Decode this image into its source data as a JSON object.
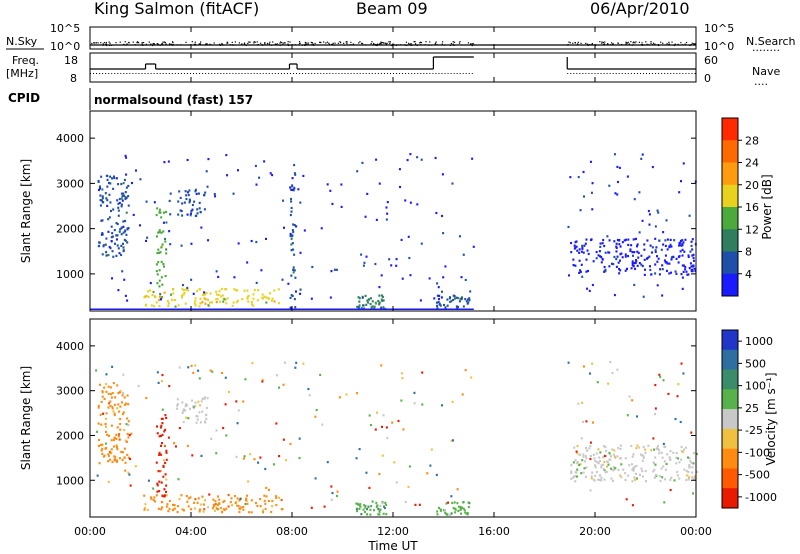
{
  "header": {
    "title": "King Salmon (fitACF)",
    "beam": "Beam 09",
    "date": "06/Apr/2010"
  },
  "strip": {
    "nsky_label": "N.Sky",
    "nsearch_label": "N.Search",
    "nsearch_dots": "........",
    "log_ticks": [
      "10^5",
      "10^0"
    ],
    "freq_label_1": "Freq.",
    "freq_label_2": "[MHz]",
    "freq_ticks": [
      "18",
      "8"
    ],
    "nave_label": "Nave",
    "nave_dots": "....",
    "nave_ticks": [
      "60",
      "0"
    ],
    "cpid_label": "CPID",
    "cpid_text": "normalsound (fast) 157"
  },
  "x_axis": {
    "label": "Time UT",
    "ticks": [
      "00:00",
      "04:00",
      "08:00",
      "12:00",
      "16:00",
      "20:00",
      "00:00"
    ]
  },
  "power_colorbar": {
    "label": "Power [dB]",
    "ticks": [
      "4",
      "8",
      "12",
      "16",
      "20",
      "24",
      "28"
    ],
    "colors": [
      "#1a1aff",
      "#1f4fa8",
      "#2f7f5f",
      "#4caa3c",
      "#e8d21e",
      "#ff9b0f",
      "#ff6a00",
      "#ff2a00"
    ]
  },
  "velocity_colorbar": {
    "label": "Velocity [m s⁻¹]",
    "ticks": [
      "1000",
      "500",
      "100",
      "25",
      "-25",
      "-100",
      "-500",
      "-1000"
    ],
    "colors": [
      "#1f36c8",
      "#2c6fa0",
      "#3a8c6a",
      "#58b24a",
      "#c8c8c8",
      "#f0c040",
      "#ff8c10",
      "#ff5a00",
      "#e81a00"
    ]
  },
  "chart_data": [
    {
      "type": "heatmap",
      "title": "",
      "xlabel": "Time UT",
      "ylabel": "Slant Range [km]",
      "xlim": [
        0,
        24
      ],
      "ylim": [
        180,
        4600
      ],
      "yticks": [
        1000,
        2000,
        3000,
        4000
      ],
      "colorbar_label": "Power [dB]",
      "features": [
        {
          "t0": 2.1,
          "t1": 7.6,
          "r0": 300,
          "r1": 700,
          "value_db": 20
        },
        {
          "t0": 3.4,
          "t1": 4.6,
          "r0": 2300,
          "r1": 2900,
          "value_db": 8
        },
        {
          "t0": 0.3,
          "t1": 1.5,
          "r0": 1400,
          "r1": 3200,
          "value_db": 6
        },
        {
          "t0": 2.6,
          "t1": 3.0,
          "r0": 500,
          "r1": 2500,
          "value_db": 14
        },
        {
          "t0": 7.9,
          "t1": 8.1,
          "r0": 200,
          "r1": 3500,
          "value_db": 6
        },
        {
          "t0": 10.5,
          "t1": 11.7,
          "r0": 250,
          "r1": 550,
          "value_db": 10
        },
        {
          "t0": 13.7,
          "t1": 15.0,
          "r0": 250,
          "r1": 550,
          "value_db": 6
        },
        {
          "t0": 19.0,
          "t1": 24.0,
          "r0": 1000,
          "r1": 1800,
          "value_db": 5
        }
      ]
    },
    {
      "type": "heatmap",
      "title": "",
      "xlabel": "Time UT",
      "ylabel": "Slant Range [km]",
      "xlim": [
        0,
        24
      ],
      "ylim": [
        180,
        4600
      ],
      "yticks": [
        1000,
        2000,
        3000,
        4000
      ],
      "colorbar_label": "Velocity [m s⁻¹]",
      "features": [
        {
          "t0": 2.1,
          "t1": 7.6,
          "r0": 300,
          "r1": 700,
          "value_ms": -300
        },
        {
          "t0": 3.4,
          "t1": 4.6,
          "r0": 2300,
          "r1": 2900,
          "value_ms": 0
        },
        {
          "t0": 0.3,
          "t1": 1.5,
          "r0": 1400,
          "r1": 3200,
          "value_ms": -200
        },
        {
          "t0": 2.6,
          "t1": 3.0,
          "r0": 500,
          "r1": 2500,
          "value_ms": -800
        },
        {
          "t0": 10.5,
          "t1": 11.7,
          "r0": 250,
          "r1": 550,
          "value_ms": 150
        },
        {
          "t0": 13.7,
          "t1": 15.0,
          "r0": 250,
          "r1": 550,
          "value_ms": 150
        },
        {
          "t0": 19.0,
          "t1": 24.0,
          "r0": 1000,
          "r1": 1800,
          "value_ms": 0
        }
      ]
    }
  ]
}
